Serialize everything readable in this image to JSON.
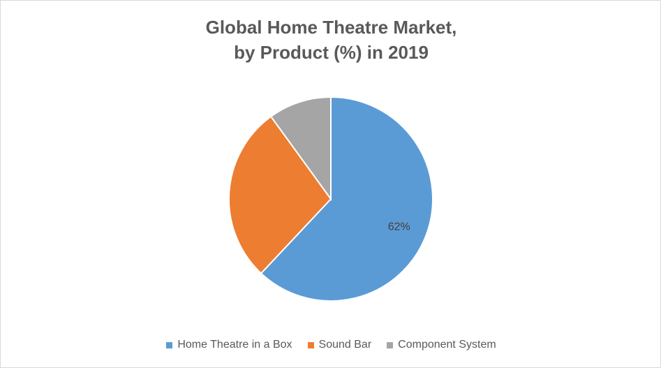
{
  "chart_data": {
    "type": "pie",
    "title_line1": "Global Home Theatre Market,",
    "title_line2": "by Product (%) in 2019",
    "categories": [
      "Home Theatre in a Box",
      "Sound Bar",
      "Component System"
    ],
    "values": [
      62,
      28,
      10
    ],
    "data_labels": [
      "62%",
      "",
      ""
    ],
    "colors": [
      "#5b9bd5",
      "#ed7d31",
      "#a5a5a5"
    ],
    "legend_position": "bottom"
  }
}
